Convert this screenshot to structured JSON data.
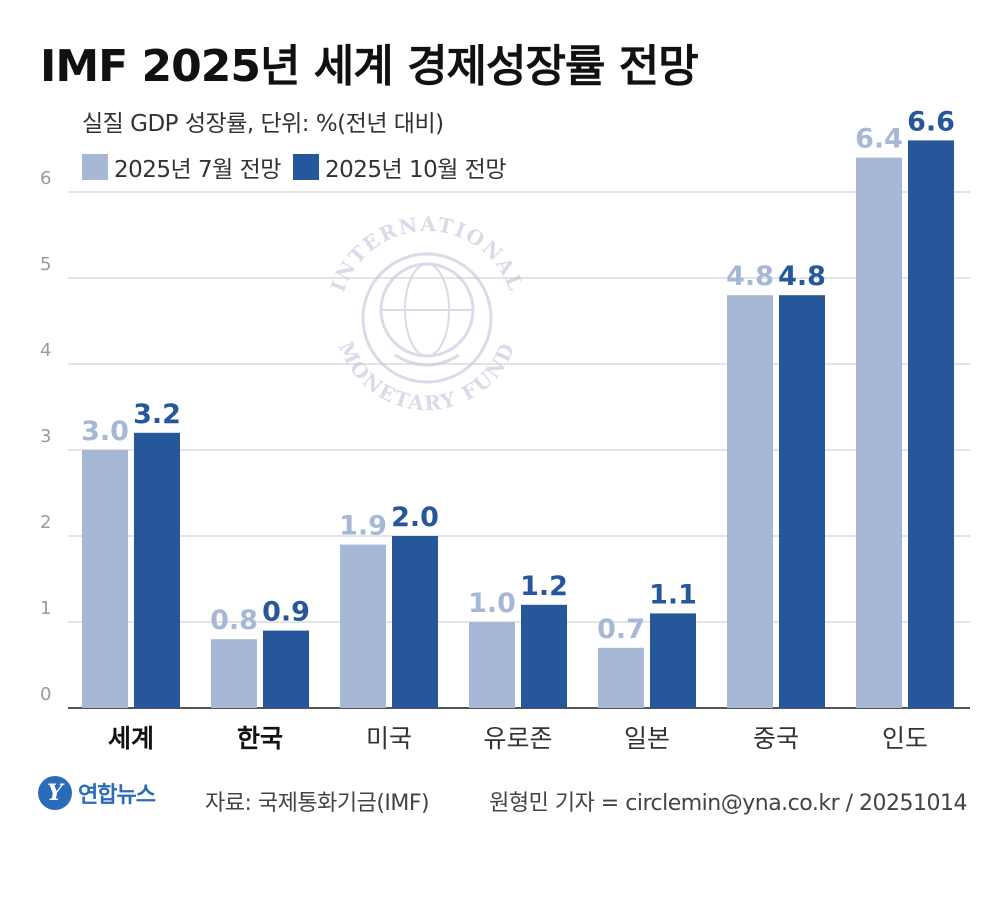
{
  "title": "IMF 2025년 세계 경제성장률 전망",
  "subtitle": "실질 GDP 성장률, 단위: %(전년 대비)",
  "colors": {
    "light": "#a7b8d6",
    "dark": "#26579a",
    "grid": "#c9c9c9",
    "axis": "#555555"
  },
  "chart_data": {
    "type": "bar",
    "title": "IMF 2025년 세계 경제성장률 전망",
    "ylabel": "실질 GDP 성장률, 단위: %(전년 대비)",
    "xlabel": "",
    "ylim": [
      0,
      6.6
    ],
    "yticks": [
      0,
      1,
      2,
      3,
      4,
      5,
      6
    ],
    "grid": true,
    "legend_position": "top-left",
    "categories": [
      "세계",
      "한국",
      "미국",
      "유로존",
      "일본",
      "중국",
      "인도"
    ],
    "bold_categories": [
      "세계",
      "한국"
    ],
    "series": [
      {
        "name": "2025년 7월 전망",
        "values": [
          3.0,
          0.8,
          1.9,
          1.0,
          0.7,
          4.8,
          6.4
        ],
        "labels": [
          "3.0",
          "0.8",
          "1.9",
          "1.0",
          "0.7",
          "4.8",
          "6.4"
        ]
      },
      {
        "name": "2025년 10월 전망",
        "values": [
          3.2,
          0.9,
          2.0,
          1.2,
          1.1,
          4.8,
          6.6
        ],
        "labels": [
          "3.2",
          "0.9",
          "2.0",
          "1.2",
          "1.1",
          "4.8",
          "6.6"
        ]
      }
    ]
  },
  "watermark": {
    "top_text": "INTERNATIONAL",
    "bottom_text": "MONETARY FUND",
    "icon": "imf-seal-icon"
  },
  "footer": {
    "logo_text": "연합뉴스",
    "logo_mark": "Y",
    "source": "자료: 국제통화기금(IMF)",
    "credit": "원형민 기자 = circlemin@yna.co.kr / 20251014"
  }
}
